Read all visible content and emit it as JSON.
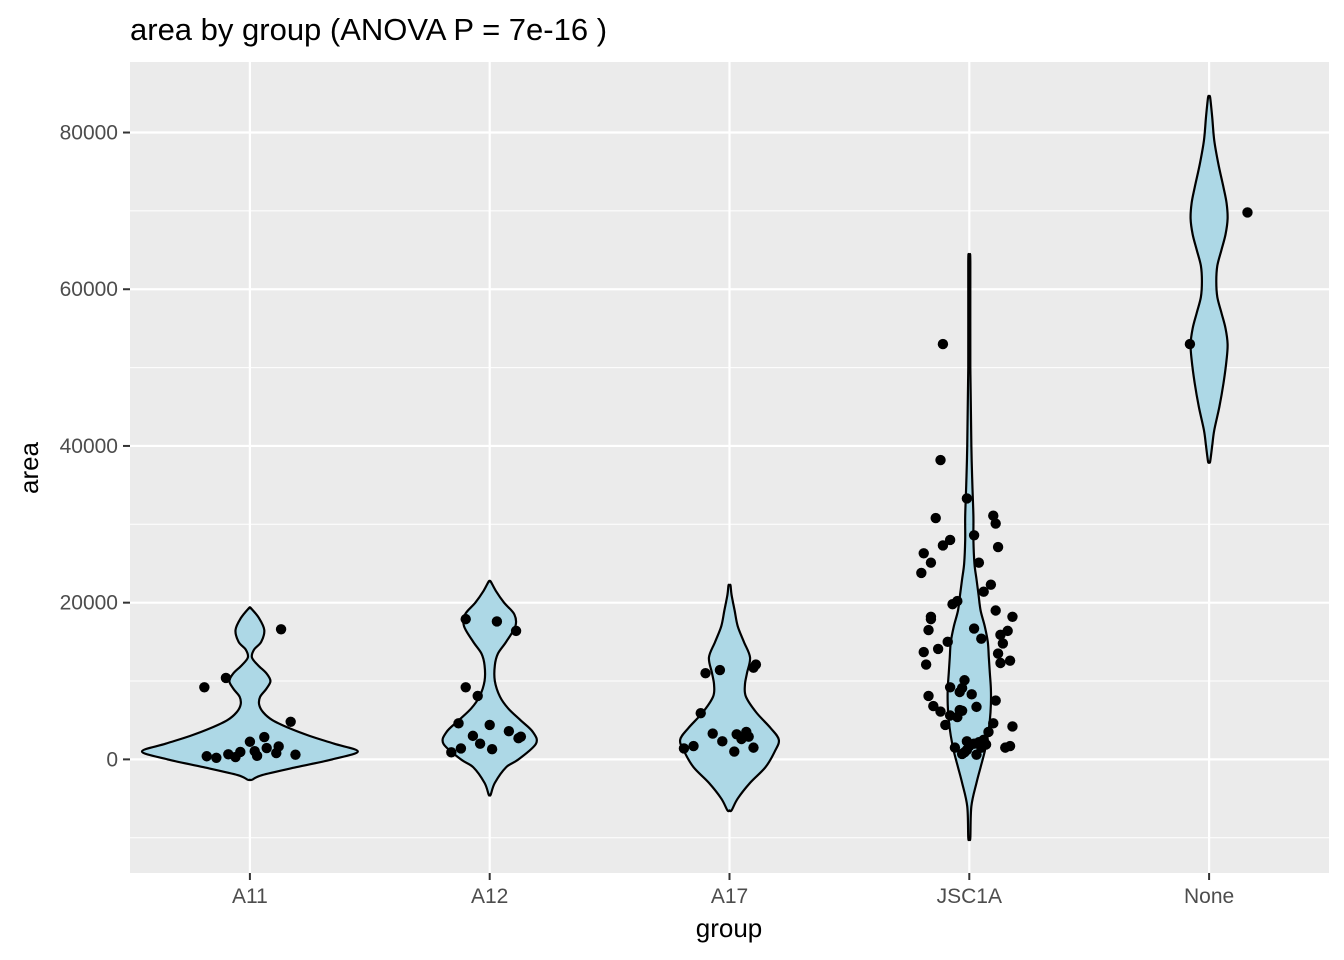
{
  "chart_data": {
    "type": "violin",
    "title": "area by group (ANOVA P = 7e-16 )",
    "xlabel": "group",
    "ylabel": "area",
    "categories": [
      "A11",
      "A12",
      "A17",
      "JSC1A",
      "None"
    ],
    "ylim": [
      -14500,
      89000
    ],
    "yticks": [
      0,
      20000,
      40000,
      60000,
      80000
    ],
    "ytick_labels": [
      "0",
      "20000",
      "40000",
      "60000",
      "80000"
    ],
    "grid": true,
    "legend": "none",
    "colors": {
      "panel_background": "#EBEBEB",
      "grid_major": "#FFFFFF",
      "violin_fill": "#ADD8E6",
      "violin_outline": "#000000",
      "points": "#000000",
      "tick_label": "#4D4D4D"
    },
    "violins": [
      {
        "group": "A11",
        "profile": [
          [
            -2600,
            2
          ],
          [
            -2000,
            12
          ],
          [
            -1000,
            45
          ],
          [
            0,
            80
          ],
          [
            1000,
            105
          ],
          [
            2000,
            82
          ],
          [
            3000,
            58
          ],
          [
            4000,
            38
          ],
          [
            5000,
            22
          ],
          [
            6000,
            13
          ],
          [
            7000,
            9
          ],
          [
            8000,
            10
          ],
          [
            9000,
            16
          ],
          [
            10000,
            20
          ],
          [
            11000,
            16
          ],
          [
            12000,
            8
          ],
          [
            13000,
            2
          ],
          [
            14000,
            4
          ],
          [
            15000,
            11
          ],
          [
            16500,
            14
          ],
          [
            18000,
            9
          ],
          [
            19300,
            1
          ]
        ]
      },
      {
        "group": "A12",
        "profile": [
          [
            -4500,
            1
          ],
          [
            -3000,
            5
          ],
          [
            -1000,
            16
          ],
          [
            0,
            28
          ],
          [
            2000,
            45
          ],
          [
            3500,
            42
          ],
          [
            5000,
            30
          ],
          [
            6500,
            18
          ],
          [
            8000,
            10
          ],
          [
            10000,
            5
          ],
          [
            12000,
            5
          ],
          [
            13500,
            8
          ],
          [
            15000,
            16
          ],
          [
            17000,
            25
          ],
          [
            18500,
            24
          ],
          [
            20000,
            14
          ],
          [
            21500,
            6
          ],
          [
            22700,
            1
          ]
        ]
      },
      {
        "group": "A17",
        "profile": [
          [
            -6500,
            2
          ],
          [
            -5000,
            8
          ],
          [
            -3000,
            20
          ],
          [
            -1000,
            35
          ],
          [
            1000,
            44
          ],
          [
            2500,
            48
          ],
          [
            4000,
            40
          ],
          [
            6000,
            26
          ],
          [
            8000,
            16
          ],
          [
            9500,
            15
          ],
          [
            11000,
            17
          ],
          [
            13000,
            20
          ],
          [
            15000,
            14
          ],
          [
            17000,
            8
          ],
          [
            19000,
            5
          ],
          [
            21000,
            2
          ],
          [
            22200,
            1
          ]
        ]
      },
      {
        "group": "JSC1A",
        "profile": [
          [
            -10000,
            1
          ],
          [
            -6000,
            2
          ],
          [
            -3000,
            7
          ],
          [
            -1000,
            11
          ],
          [
            1000,
            15
          ],
          [
            3000,
            18
          ],
          [
            5000,
            20
          ],
          [
            7000,
            21
          ],
          [
            9000,
            21
          ],
          [
            11000,
            20
          ],
          [
            13000,
            19
          ],
          [
            15000,
            18
          ],
          [
            17000,
            15
          ],
          [
            19000,
            11
          ],
          [
            21000,
            9
          ],
          [
            23000,
            7
          ],
          [
            25000,
            5
          ],
          [
            28000,
            4
          ],
          [
            31000,
            4
          ],
          [
            35000,
            3
          ],
          [
            40000,
            2
          ],
          [
            50000,
            1
          ],
          [
            63500,
            1
          ]
        ]
      },
      {
        "group": "None",
        "profile": [
          [
            38000,
            1
          ],
          [
            40000,
            3
          ],
          [
            42000,
            5
          ],
          [
            45000,
            10
          ],
          [
            48000,
            14
          ],
          [
            51000,
            17
          ],
          [
            53000,
            18
          ],
          [
            55000,
            16
          ],
          [
            57000,
            12
          ],
          [
            59000,
            8
          ],
          [
            61000,
            7
          ],
          [
            63000,
            8
          ],
          [
            65000,
            12
          ],
          [
            67000,
            16
          ],
          [
            69000,
            18
          ],
          [
            71000,
            17
          ],
          [
            73000,
            14
          ],
          [
            76000,
            9
          ],
          [
            79000,
            5
          ],
          [
            82000,
            3
          ],
          [
            84500,
            1
          ]
        ]
      }
    ],
    "points": [
      {
        "group": "A11",
        "x": [
          -0.18,
          -0.09,
          -0.04,
          0.02,
          0.07,
          0.12,
          -0.19,
          -0.1,
          0.13,
          0,
          0.06,
          0.17,
          -0.14,
          -0.06,
          0.03,
          0.11,
          0.19
        ],
        "y": [
          400,
          650,
          950,
          1050,
          1450,
          1650,
          9200,
          10400,
          16600,
          2250,
          2850,
          4800,
          200,
          300,
          450,
          800,
          600
        ]
      },
      {
        "group": "A12",
        "x": [
          -0.1,
          -0.1,
          -0.05,
          0,
          0.03,
          -0.16,
          -0.12,
          -0.07,
          -0.04,
          0.01,
          0.08,
          0.12,
          0.13,
          -0.13,
          0.11
        ],
        "y": [
          17900,
          9200,
          8100,
          4400,
          17600,
          900,
          1400,
          3000,
          2000,
          1300,
          3600,
          2700,
          2900,
          4600,
          16400
        ]
      },
      {
        "group": "A17",
        "x": [
          -0.19,
          -0.15,
          -0.12,
          -0.1,
          -0.04,
          0.03,
          0.08,
          0.1,
          0.1,
          0.11,
          0.05,
          0.07,
          -0.03,
          -0.07,
          0.02
        ],
        "y": [
          1400,
          1700,
          5900,
          11000,
          11400,
          3200,
          2900,
          1500,
          11700,
          12100,
          2600,
          3500,
          2300,
          3300,
          1000
        ]
      },
      {
        "group": "JSC1A",
        "x": [
          -0.11,
          -0.12,
          -0.14,
          -0.19,
          -0.16,
          -0.2,
          -0.16,
          -0.17,
          -0.19,
          -0.18,
          -0.17,
          -0.15,
          -0.08,
          -0.11,
          -0.13,
          -0.16,
          -0.07,
          -0.05,
          -0.01,
          0.02,
          0.04,
          0.06,
          0.09,
          0.1,
          0.11,
          0.12,
          0.13,
          0.14,
          0.16,
          0.18,
          0.17,
          0.11,
          0.12,
          0.13,
          0.11,
          -0.04,
          -0.02,
          -0.03,
          0.01,
          0.03,
          -0.09,
          -0.08,
          -0.1,
          -0.12,
          -0.08,
          -0.05,
          -0.03,
          0.0,
          0.02,
          0.04,
          0.06,
          0.08,
          0.1,
          -0.01,
          0.0,
          -0.02,
          0.03,
          0.05,
          0.07,
          0.15,
          0.17,
          0.18,
          -0.06,
          -0.03,
          -0.01,
          0.02,
          0.05,
          -0.04
        ],
        "y": [
          53000,
          38200,
          30800,
          26300,
          25100,
          23800,
          17900,
          16500,
          13700,
          12100,
          8100,
          6800,
          28000,
          27300,
          14100,
          18200,
          19800,
          20200,
          33300,
          28600,
          25100,
          21400,
          22300,
          31100,
          30100,
          27100,
          15900,
          14800,
          16400,
          18200,
          12600,
          19000,
          13500,
          12300,
          7500,
          8600,
          10100,
          9100,
          8300,
          6700,
          15000,
          9200,
          4400,
          6100,
          5600,
          5400,
          6200,
          1700,
          2000,
          2200,
          2500,
          3500,
          4600,
          1200,
          1800,
          900,
          600,
          1500,
          1900,
          1500,
          1700,
          4200,
          1500,
          700,
          2300,
          16700,
          15400,
          6300
        ]
      },
      {
        "group": "None",
        "x": [
          -0.08,
          0.16
        ],
        "y": [
          53000,
          69800
        ]
      }
    ]
  }
}
